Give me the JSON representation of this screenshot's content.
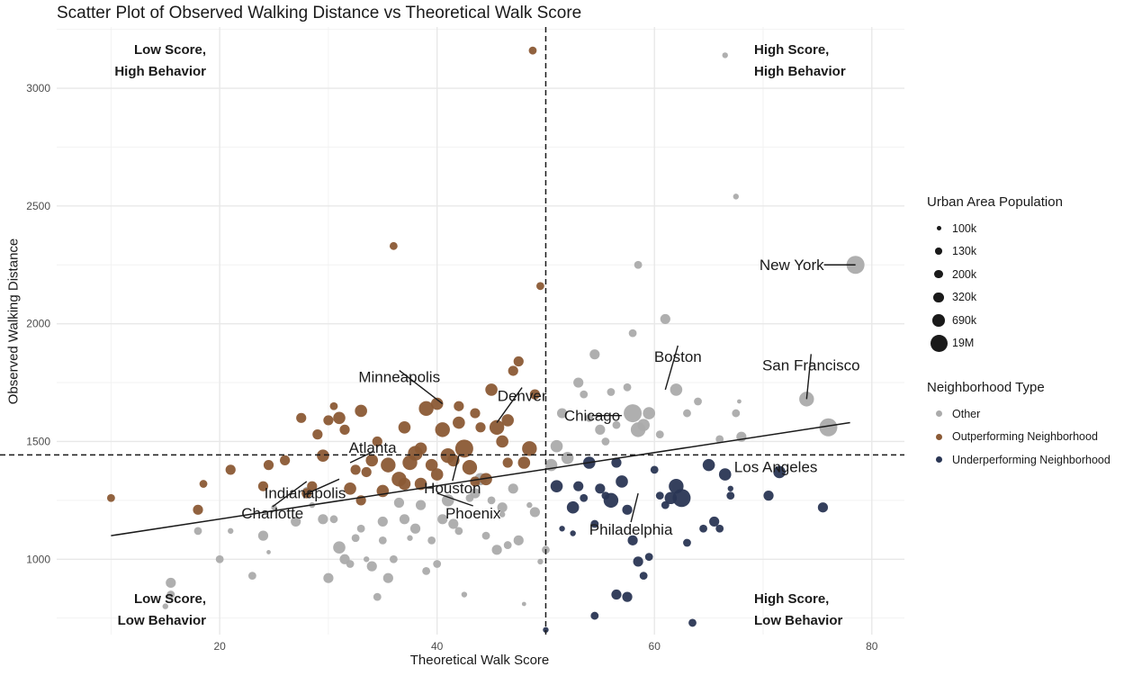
{
  "chart_data": {
    "type": "scatter",
    "title": "Scatter Plot of Observed Walking Distance vs Theoretical Walk Score",
    "xlabel": "Theoretical Walk Score",
    "ylabel": "Observed Walking Distance",
    "xlim": [
      5,
      83
    ],
    "ylim": [
      680,
      3260
    ],
    "x_ticks": [
      20,
      40,
      60,
      80
    ],
    "y_ticks": [
      1000,
      1500,
      2000,
      2500,
      3000
    ],
    "grid": true,
    "x_threshold": 50,
    "y_threshold": 1443,
    "trend_line": [
      [
        10,
        1100
      ],
      [
        78,
        1580
      ]
    ],
    "quadrant_labels": {
      "top_left": [
        "Low Score,",
        "High Behavior"
      ],
      "top_right": [
        "High Score,",
        "High Behavior"
      ],
      "bottom_left": [
        "Low Score,",
        "Low Behavior"
      ],
      "bottom_right": [
        "High Score,",
        "Low Behavior"
      ]
    },
    "size_legend": {
      "title": "Urban Area Population",
      "entries": [
        "100k",
        "130k",
        "200k",
        "320k",
        "690k",
        "19M"
      ]
    },
    "color_legend": {
      "title": "Neighborhood Type",
      "entries": [
        {
          "name": "Other",
          "color": "#ababab"
        },
        {
          "name": "Outperforming Neighborhood",
          "color": "#8b5a35"
        },
        {
          "name": "Underperforming Neighborhood",
          "color": "#2a3654"
        }
      ]
    },
    "series": [
      {
        "name": "Other",
        "color": "#ababab",
        "points": [
          [
            15,
            800,
            2
          ],
          [
            15.5,
            900,
            4
          ],
          [
            15.5,
            850,
            3
          ],
          [
            18,
            1120,
            3
          ],
          [
            20,
            1000,
            3
          ],
          [
            21,
            1120,
            2
          ],
          [
            23,
            930,
            3
          ],
          [
            24,
            1100,
            4
          ],
          [
            24.5,
            1030,
            1
          ],
          [
            25,
            1220,
            2
          ],
          [
            27,
            1160,
            4
          ],
          [
            28.5,
            1230,
            2
          ],
          [
            29.5,
            1170,
            4
          ],
          [
            30,
            920,
            4
          ],
          [
            30.5,
            1170,
            3
          ],
          [
            31,
            1050,
            5
          ],
          [
            31.5,
            1000,
            4
          ],
          [
            32,
            980,
            3
          ],
          [
            32.5,
            1090,
            3
          ],
          [
            33,
            1130,
            3
          ],
          [
            33.5,
            1000,
            2
          ],
          [
            34,
            970,
            4
          ],
          [
            34.5,
            840,
            3
          ],
          [
            35,
            1080,
            3
          ],
          [
            35.5,
            920,
            4
          ],
          [
            36,
            1000,
            3
          ],
          [
            36.5,
            1240,
            4
          ],
          [
            37,
            1170,
            4
          ],
          [
            37.5,
            1090,
            2
          ],
          [
            38,
            1130,
            4
          ],
          [
            38.5,
            1230,
            4
          ],
          [
            39,
            950,
            3
          ],
          [
            39.5,
            1080,
            3
          ],
          [
            40,
            980,
            3
          ],
          [
            40.5,
            1170,
            4
          ],
          [
            41,
            1250,
            5
          ],
          [
            41.5,
            1150,
            4
          ],
          [
            42,
            1120,
            3
          ],
          [
            42.5,
            850,
            2
          ],
          [
            43,
            1260,
            3
          ],
          [
            43.5,
            1280,
            4
          ],
          [
            44,
            1340,
            5
          ],
          [
            44.5,
            1100,
            3
          ],
          [
            45,
            1250,
            3
          ],
          [
            45.5,
            1040,
            4
          ],
          [
            46,
            1220,
            4
          ],
          [
            46.5,
            1060,
            3
          ],
          [
            47,
            1300,
            4
          ],
          [
            47.5,
            1080,
            4
          ],
          [
            48,
            810,
            1
          ],
          [
            48.5,
            1230,
            2
          ],
          [
            49,
            1200,
            4
          ],
          [
            49.5,
            990,
            2
          ],
          [
            50,
            1040,
            3
          ],
          [
            50.5,
            1400,
            5
          ],
          [
            51,
            1480,
            5
          ],
          [
            51.5,
            1620,
            4
          ],
          [
            52,
            1430,
            5
          ],
          [
            53,
            1750,
            4
          ],
          [
            53.5,
            1700,
            3
          ],
          [
            54,
            1600,
            3
          ],
          [
            54.5,
            1870,
            4
          ],
          [
            55,
            1550,
            4
          ],
          [
            55.5,
            1500,
            3
          ],
          [
            56,
            1710,
            3
          ],
          [
            56.5,
            1570,
            3
          ],
          [
            57.5,
            1730,
            3
          ],
          [
            58,
            1960,
            3
          ],
          [
            58.5,
            2250,
            3
          ],
          [
            59,
            1570,
            5
          ],
          [
            59.5,
            1620,
            5
          ],
          [
            60.5,
            1530,
            3
          ],
          [
            61,
            2020,
            4
          ],
          [
            62,
            1720,
            5
          ],
          [
            63,
            1620,
            3
          ],
          [
            64,
            1670,
            3
          ],
          [
            66,
            1510,
            3
          ],
          [
            66.5,
            3140,
            2
          ],
          [
            67.5,
            2540,
            2
          ],
          [
            67.5,
            1620,
            3
          ],
          [
            67.8,
            1670,
            1
          ],
          [
            68,
            1520,
            4
          ],
          [
            74,
            1680,
            6
          ],
          [
            78.5,
            2250,
            7
          ],
          [
            76,
            1560,
            7
          ],
          [
            58,
            1620,
            7
          ],
          [
            58.5,
            1550,
            6
          ],
          [
            46,
            1190,
            2
          ],
          [
            28,
            1290,
            3
          ],
          [
            35,
            1160,
            4
          ]
        ]
      },
      {
        "name": "Outperforming Neighborhood",
        "color": "#8b5a35",
        "points": [
          [
            10,
            1260,
            3
          ],
          [
            18,
            1210,
            4
          ],
          [
            18.5,
            1320,
            3
          ],
          [
            21,
            1380,
            4
          ],
          [
            24,
            1310,
            4
          ],
          [
            24.5,
            1400,
            4
          ],
          [
            26,
            1420,
            4
          ],
          [
            27.5,
            1600,
            4
          ],
          [
            28,
            1280,
            4
          ],
          [
            28.5,
            1310,
            4
          ],
          [
            29,
            1530,
            4
          ],
          [
            29.5,
            1440,
            5
          ],
          [
            30,
            1590,
            4
          ],
          [
            30.5,
            1650,
            3
          ],
          [
            31,
            1600,
            5
          ],
          [
            31.5,
            1550,
            4
          ],
          [
            32,
            1300,
            5
          ],
          [
            32.5,
            1380,
            4
          ],
          [
            33,
            1630,
            5
          ],
          [
            33.5,
            1370,
            4
          ],
          [
            34,
            1420,
            5
          ],
          [
            34.5,
            1500,
            4
          ],
          [
            35,
            1290,
            5
          ],
          [
            35.5,
            1400,
            6
          ],
          [
            36,
            2330,
            3
          ],
          [
            36.5,
            1340,
            6
          ],
          [
            37,
            1560,
            5
          ],
          [
            37.5,
            1410,
            6
          ],
          [
            38,
            1450,
            6
          ],
          [
            38.5,
            1320,
            5
          ],
          [
            39,
            1640,
            6
          ],
          [
            39.5,
            1400,
            5
          ],
          [
            40,
            1660,
            5
          ],
          [
            40.5,
            1550,
            6
          ],
          [
            41,
            1440,
            6
          ],
          [
            41.5,
            1420,
            5
          ],
          [
            42,
            1650,
            4
          ],
          [
            42.5,
            1470,
            7
          ],
          [
            43,
            1390,
            6
          ],
          [
            43.5,
            1620,
            4
          ],
          [
            44,
            1560,
            4
          ],
          [
            44.5,
            1340,
            5
          ],
          [
            45,
            1720,
            5
          ],
          [
            45.5,
            1560,
            6
          ],
          [
            46,
            1500,
            5
          ],
          [
            46.5,
            1590,
            5
          ],
          [
            47,
            1800,
            4
          ],
          [
            47.5,
            1840,
            4
          ],
          [
            48,
            1410,
            5
          ],
          [
            48.5,
            1470,
            6
          ],
          [
            49,
            1700,
            4
          ],
          [
            49.5,
            2160,
            3
          ],
          [
            48.8,
            3160,
            3
          ],
          [
            46.5,
            1410,
            4
          ],
          [
            43.5,
            1330,
            4
          ],
          [
            40,
            1360,
            5
          ],
          [
            37,
            1320,
            5
          ],
          [
            33,
            1250,
            4
          ],
          [
            42,
            1580,
            5
          ],
          [
            38.5,
            1470,
            5
          ]
        ]
      },
      {
        "name": "Underperforming Neighborhood",
        "color": "#2a3654",
        "points": [
          [
            50,
            700,
            2
          ],
          [
            51,
            1310,
            5
          ],
          [
            51.5,
            1130,
            2
          ],
          [
            52.5,
            1220,
            5
          ],
          [
            52.5,
            1110,
            2
          ],
          [
            53,
            1310,
            4
          ],
          [
            53.5,
            1260,
            3
          ],
          [
            54,
            1410,
            5
          ],
          [
            54.5,
            1150,
            3
          ],
          [
            54.5,
            760,
            3
          ],
          [
            55,
            1300,
            4
          ],
          [
            55.5,
            1270,
            3
          ],
          [
            56,
            1250,
            6
          ],
          [
            56.5,
            1410,
            4
          ],
          [
            57,
            1330,
            5
          ],
          [
            57.5,
            840,
            4
          ],
          [
            57.5,
            1210,
            4
          ],
          [
            58,
            1080,
            4
          ],
          [
            58.5,
            990,
            4
          ],
          [
            59,
            930,
            3
          ],
          [
            59.5,
            1010,
            3
          ],
          [
            60,
            1380,
            3
          ],
          [
            60.5,
            1270,
            3
          ],
          [
            61,
            1230,
            3
          ],
          [
            61.5,
            1260,
            5
          ],
          [
            62,
            1310,
            6
          ],
          [
            62.5,
            1260,
            7
          ],
          [
            63,
            1070,
            3
          ],
          [
            63.5,
            730,
            3
          ],
          [
            64.5,
            1130,
            3
          ],
          [
            65,
            1400,
            5
          ],
          [
            65.5,
            1160,
            4
          ],
          [
            66,
            1130,
            3
          ],
          [
            66.5,
            1360,
            5
          ],
          [
            67,
            1300,
            2
          ],
          [
            67,
            1270,
            3
          ],
          [
            70.5,
            1270,
            4
          ],
          [
            71.5,
            1370,
            5
          ],
          [
            75.5,
            1220,
            4
          ],
          [
            56.5,
            850,
            4
          ]
        ]
      }
    ],
    "annotations": [
      {
        "label": "New York",
        "x": 78.5,
        "y": 2250
      },
      {
        "label": "San Francisco",
        "x": 74,
        "y": 1680
      },
      {
        "label": "Boston",
        "x": 61,
        "y": 1720
      },
      {
        "label": "Minneapolis",
        "x": 40.5,
        "y": 1660
      },
      {
        "label": "Denver",
        "x": 45.5,
        "y": 1580
      },
      {
        "label": "Atlanta",
        "x": 32,
        "y": 1410
      },
      {
        "label": "Chicago",
        "x": 57,
        "y": 1610
      },
      {
        "label": "Indianapolis",
        "x": 31,
        "y": 1340
      },
      {
        "label": "Los Angeles",
        "x": 71.5,
        "y": 1370
      },
      {
        "label": "Houston",
        "x": 42,
        "y": 1440
      },
      {
        "label": "Phoenix",
        "x": 40,
        "y": 1280
      },
      {
        "label": "Philadelphia",
        "x": 58.5,
        "y": 1280
      },
      {
        "label": "Charlotte",
        "x": 28,
        "y": 1330
      }
    ]
  }
}
